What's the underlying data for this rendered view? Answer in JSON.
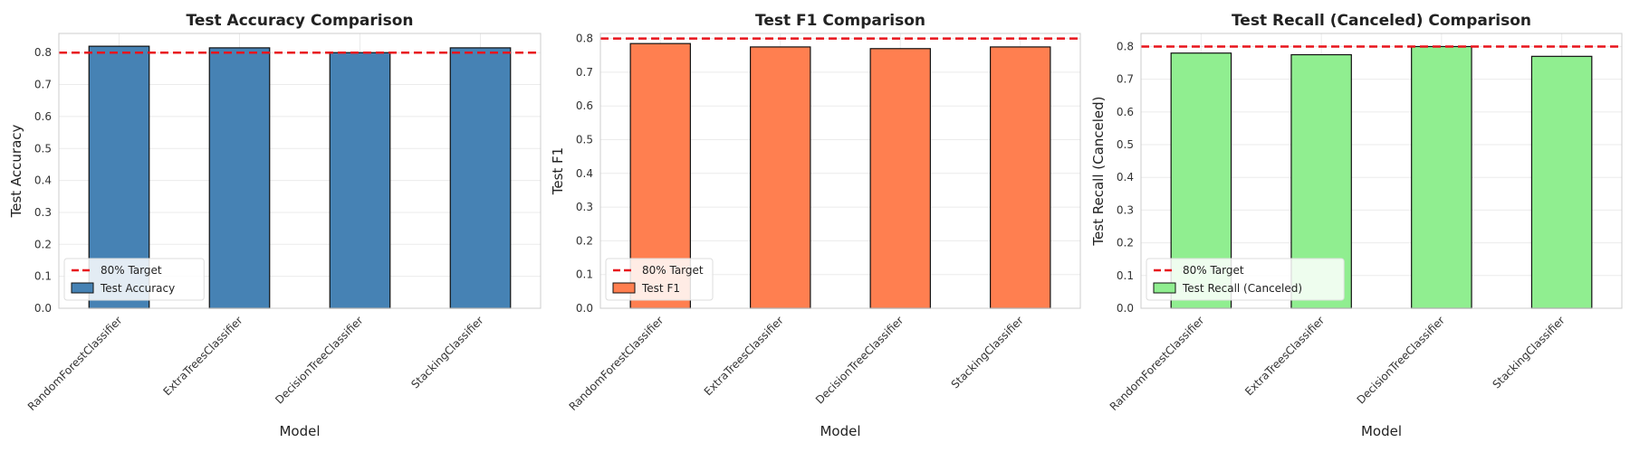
{
  "chart_data": [
    {
      "type": "bar",
      "title": "Test Accuracy Comparison",
      "xlabel": "Model",
      "ylabel": "Test Accuracy",
      "categories": [
        "RandomForestClassifier",
        "ExtraTreesClassifier",
        "DecisionTreeClassifier",
        "StackingClassifier"
      ],
      "series": [
        {
          "name": "Test Accuracy",
          "values": [
            0.82,
            0.815,
            0.8,
            0.815
          ]
        }
      ],
      "ylim": [
        0,
        0.86
      ],
      "yticks": [
        0.0,
        0.1,
        0.2,
        0.3,
        0.4,
        0.5,
        0.6,
        0.7,
        0.8
      ],
      "reference_line": {
        "value": 0.8,
        "label": "80% Target",
        "color": "#e8141c"
      },
      "bar_color": "#4682b4",
      "grid": true,
      "legend": "lower-left"
    },
    {
      "type": "bar",
      "title": "Test F1 Comparison",
      "xlabel": "Model",
      "ylabel": "Test F1",
      "categories": [
        "RandomForestClassifier",
        "ExtraTreesClassifier",
        "DecisionTreeClassifier",
        "StackingClassifier"
      ],
      "series": [
        {
          "name": "Test F1",
          "values": [
            0.785,
            0.775,
            0.77,
            0.775
          ]
        }
      ],
      "ylim": [
        0,
        0.815
      ],
      "yticks": [
        0.0,
        0.1,
        0.2,
        0.3,
        0.4,
        0.5,
        0.6,
        0.7,
        0.8
      ],
      "reference_line": {
        "value": 0.8,
        "label": "80% Target",
        "color": "#e8141c"
      },
      "bar_color": "#ff7f50",
      "grid": true,
      "legend": "lower-left"
    },
    {
      "type": "bar",
      "title": "Test Recall (Canceled) Comparison",
      "xlabel": "Model",
      "ylabel": "Test Recall (Canceled)",
      "categories": [
        "RandomForestClassifier",
        "ExtraTreesClassifier",
        "DecisionTreeClassifier",
        "StackingClassifier"
      ],
      "series": [
        {
          "name": "Test Recall (Canceled)",
          "values": [
            0.78,
            0.775,
            0.8,
            0.77
          ]
        }
      ],
      "ylim": [
        0,
        0.84
      ],
      "yticks": [
        0.0,
        0.1,
        0.2,
        0.3,
        0.4,
        0.5,
        0.6,
        0.7,
        0.8
      ],
      "reference_line": {
        "value": 0.8,
        "label": "80% Target",
        "color": "#e8141c"
      },
      "bar_color": "#90ee90",
      "grid": true,
      "legend": "lower-left"
    }
  ]
}
